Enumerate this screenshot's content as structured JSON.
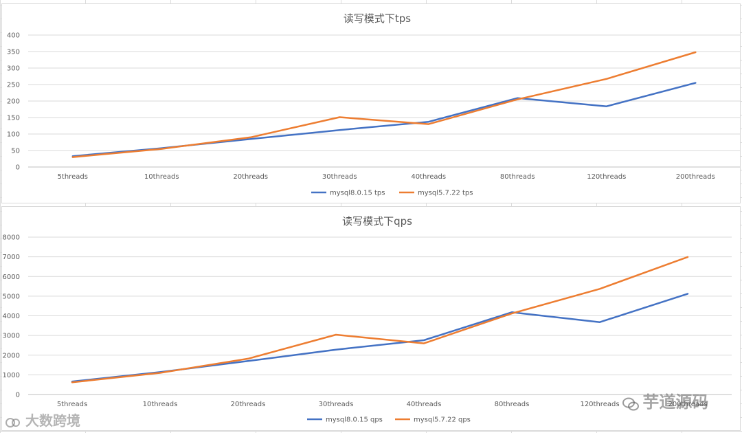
{
  "colors": {
    "series_a": "#4472c4",
    "series_b": "#ed7d31",
    "grid": "#d9d9d9",
    "text": "#595959"
  },
  "watermarks": {
    "left": "大数跨境",
    "right": "芋道源码"
  },
  "chart_data": [
    {
      "type": "line",
      "title": "读写模式下tps",
      "categories": [
        "5threads",
        "10threads",
        "20threads",
        "30threads",
        "40threads",
        "80threads",
        "120threads",
        "200threads"
      ],
      "yticks": [
        "0",
        "50",
        "100",
        "150",
        "200",
        "250",
        "300",
        "350",
        "400"
      ],
      "ylim": [
        0,
        400
      ],
      "grid": true,
      "legend": "bottom",
      "series": [
        {
          "name": "mysql8.0.15 tps",
          "color": "#4472c4",
          "values": [
            33,
            57,
            85,
            112,
            137,
            209,
            184,
            255
          ]
        },
        {
          "name": "mysql5.7.22 tps",
          "color": "#ed7d31",
          "values": [
            30,
            55,
            90,
            151,
            130,
            205,
            267,
            348
          ]
        }
      ]
    },
    {
      "type": "line",
      "title": "读写模式下qps",
      "categories": [
        "5threads",
        "10threads",
        "20threads",
        "30threads",
        "40threads",
        "80threads",
        "120threads",
        "200threads"
      ],
      "yticks": [
        "0",
        "1000",
        "2000",
        "3000",
        "4000",
        "5000",
        "6000",
        "7000",
        "8000"
      ],
      "ylim": [
        0,
        8000
      ],
      "grid": true,
      "legend": "bottom",
      "series": [
        {
          "name": "mysql8.0.15 qps",
          "color": "#4472c4",
          "values": [
            660,
            1140,
            1700,
            2280,
            2760,
            4180,
            3680,
            5120
          ]
        },
        {
          "name": "mysql5.7.22 qps",
          "color": "#ed7d31",
          "values": [
            620,
            1100,
            1820,
            3040,
            2600,
            4120,
            5370,
            6990
          ]
        }
      ]
    }
  ]
}
